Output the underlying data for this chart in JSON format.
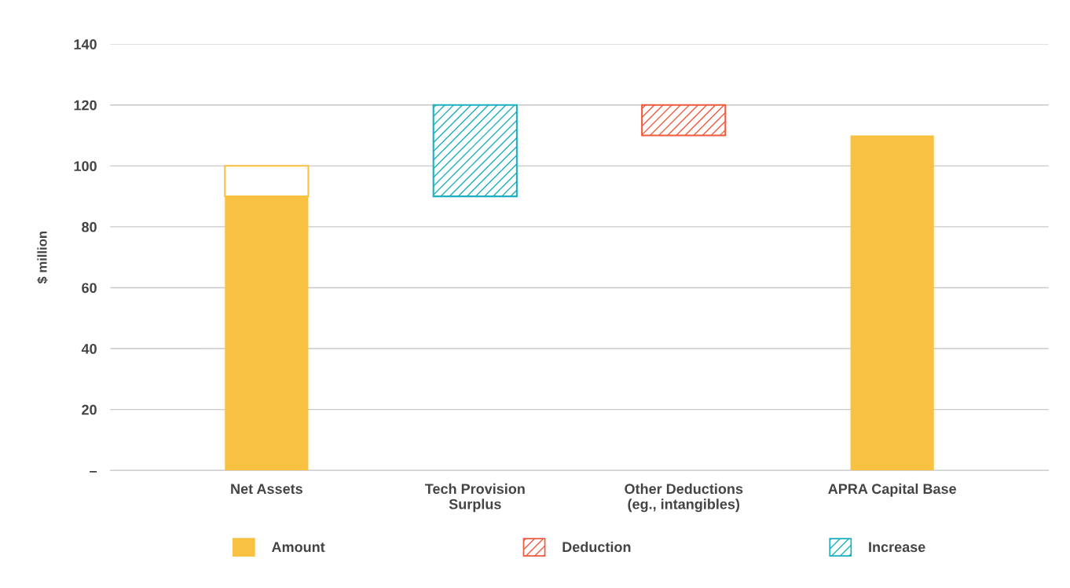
{
  "chart_data": {
    "type": "bar",
    "ylabel": "$ million",
    "categories": [
      "Net Assets",
      "Tech Provision\nSurplus",
      "Other Deductions\n(eg., intangibles)",
      "APRA Capital Base"
    ],
    "series": [
      {
        "name": "Amount",
        "color": "#f9c142",
        "values": [
          90,
          null,
          null,
          110
        ]
      },
      {
        "color": "#f9c142",
        "values": [
          10,
          null,
          null,
          null
        ],
        "base": [
          90,
          null,
          null,
          null
        ]
      },
      {
        "name": "Deduction",
        "color": "#f05a3c",
        "values": [
          null,
          null,
          10,
          null
        ],
        "base": [
          null,
          null,
          110,
          null
        ]
      },
      {
        "name": "Increase",
        "color": "#1ab0c0",
        "values": [
          null,
          30,
          null,
          null
        ],
        "base": [
          null,
          90,
          null,
          null
        ]
      }
    ],
    "ylim": [
      0,
      140
    ],
    "yticks": [
      {
        "value": 0,
        "label": "–"
      },
      20,
      40,
      60,
      80,
      100,
      120,
      140
    ],
    "grid": "y",
    "legend": "bottom"
  }
}
